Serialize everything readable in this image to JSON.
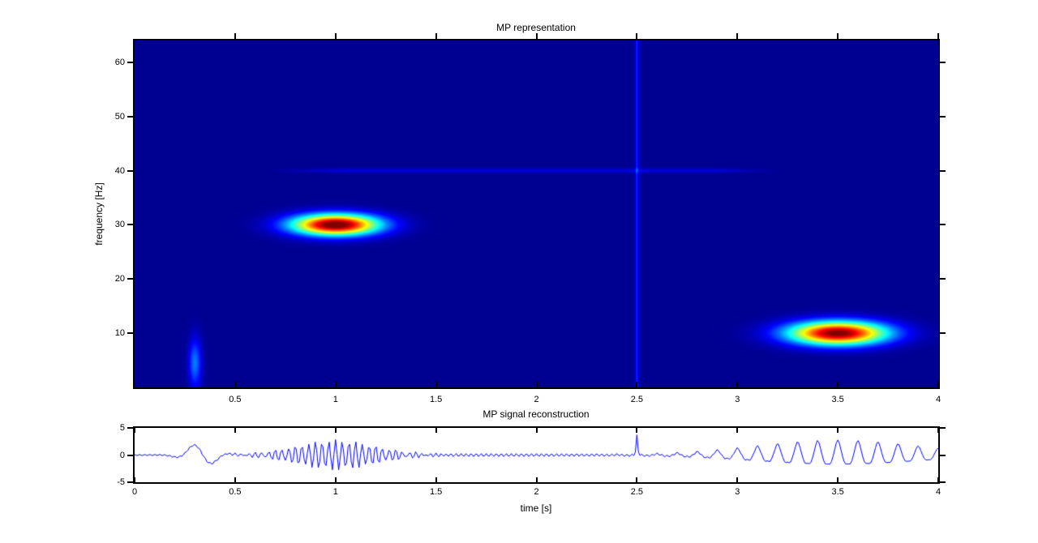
{
  "window": {
    "background": "#ffffff",
    "axis_color": "#000000"
  },
  "chart_data": [
    {
      "type": "heatmap",
      "title": "MP representation",
      "xlabel": "",
      "ylabel": "frequency [Hz]",
      "xlim": [
        0,
        4
      ],
      "ylim": [
        0,
        64
      ],
      "xticks": [
        0.5,
        1,
        1.5,
        2,
        2.5,
        3,
        3.5,
        4
      ],
      "yticks": [
        10,
        20,
        30,
        40,
        50,
        60
      ],
      "grid": false,
      "legend": "none",
      "colormap": "jet",
      "background_color": "#000090",
      "atoms": [
        {
          "kind": "blob",
          "name": "gabor-atom-30hz",
          "time": 1.0,
          "freq": 30,
          "time_sigma": 0.15,
          "freq_sigma": 1.35,
          "intensity": 1.04
        },
        {
          "kind": "blob",
          "name": "gabor-atom-10hz",
          "time": 3.5,
          "freq": 10,
          "time_sigma": 0.17,
          "freq_sigma": 1.5,
          "intensity": 1.0
        },
        {
          "kind": "blob",
          "name": "brief-lowfreq-transient",
          "time": 0.3,
          "freq": 4.5,
          "time_sigma": 0.022,
          "freq_sigma": 3.2,
          "intensity": 0.23
        },
        {
          "kind": "hline",
          "name": "sine-40hz-component",
          "freq": 40,
          "freq_sigma": 0.3,
          "t_start": 0.65,
          "t_core_start": 1.05,
          "t_core_end": 2.86,
          "t_end": 3.22,
          "intensity": 0.075
        },
        {
          "kind": "vline",
          "name": "dirac-impulse-2.5s",
          "time": 2.5,
          "time_sigma": 0.0045,
          "intensity": 0.115
        }
      ]
    },
    {
      "type": "line",
      "title": "MP signal reconstruction",
      "xlabel": "time [s]",
      "ylabel": "",
      "xlim": [
        0,
        4
      ],
      "ylim": [
        -5,
        5
      ],
      "xticks": [
        0,
        0.5,
        1,
        1.5,
        2,
        2.5,
        3,
        3.5,
        4
      ],
      "yticks": [
        -5,
        0,
        5
      ],
      "grid": false,
      "legend": "none",
      "line_color": "#0000ff",
      "samples": 513,
      "components": [
        {
          "type": "gabor",
          "amplitude": 2.6,
          "frequency": 30,
          "center": 1.0,
          "sigma": 0.2,
          "phase": 0
        },
        {
          "type": "gabor",
          "amplitude": 2.2,
          "frequency": 10,
          "center": 3.5,
          "sigma": 0.4,
          "phase": 0
        },
        {
          "type": "gabor",
          "amplitude": 0.5,
          "frequency": 20,
          "center": 3.5,
          "sigma": 0.4,
          "phase": 0
        },
        {
          "type": "gabor",
          "amplitude": 2.1,
          "frequency": 5,
          "center": 0.33,
          "sigma": 0.07,
          "phase": 1.26
        },
        {
          "type": "gabor",
          "amplitude": 0.28,
          "frequency": 40,
          "center": 1.6,
          "sigma": 1.15,
          "phase": 0
        },
        {
          "type": "dirac",
          "amplitude": 3.4,
          "time": 2.5,
          "sigma": 0.004
        }
      ]
    }
  ]
}
